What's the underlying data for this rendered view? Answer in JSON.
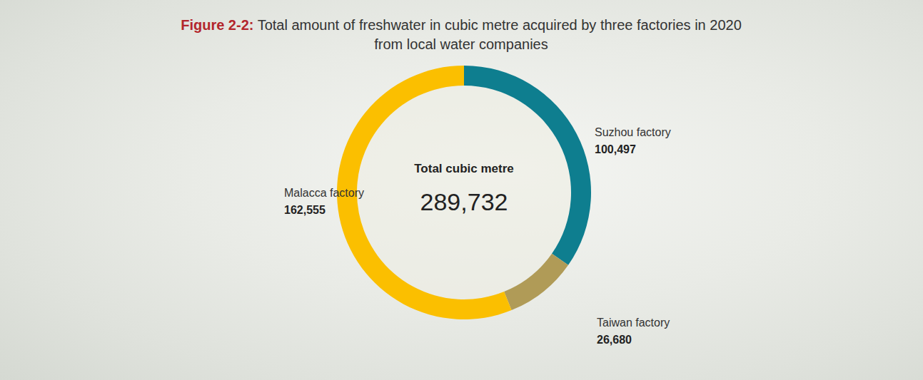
{
  "chart_data": {
    "type": "donut",
    "title": "Figure 2-2:",
    "subtitle": "Total amount of freshwater in cubic metre acquired by three factories in 2020 from local water companies",
    "categories": [
      "Suzhou factory",
      "Taiwan factory",
      "Malacca factory"
    ],
    "values": [
      100497,
      26680,
      162555
    ],
    "value_labels": [
      "100,497",
      "26,680",
      "162,555"
    ],
    "colors": [
      "#0e7e8f",
      "#b09b57",
      "#fbbf00"
    ],
    "data_labels": true,
    "center_title": "Total cubic metre",
    "total": {
      "value": 289732,
      "label": "289,732"
    }
  }
}
